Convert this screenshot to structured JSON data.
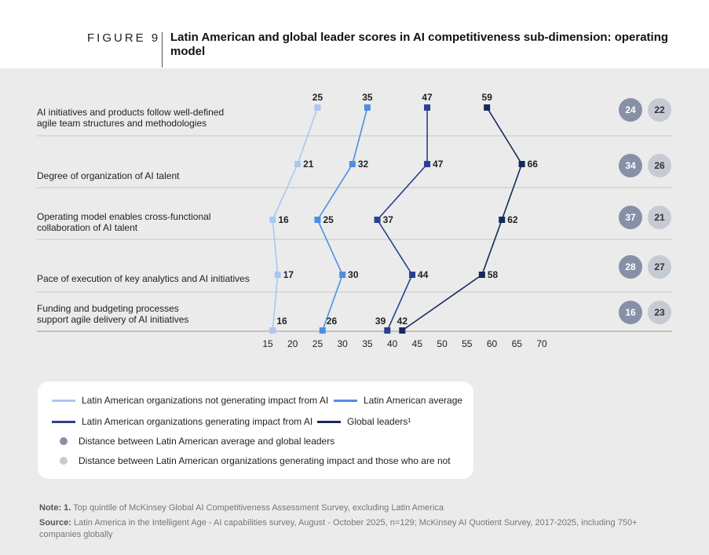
{
  "header": {
    "figure_label": "FIGURE 9",
    "title": "Latin American and global leader scores in AI competitiveness sub-dimension: operating model"
  },
  "chart_data": {
    "type": "line",
    "orientation": "horizontal-dumbbell",
    "x_ticks": [
      "15",
      "20",
      "25",
      "30",
      "35",
      "40",
      "45",
      "50",
      "55",
      "60",
      "65",
      "70"
    ],
    "xlim": [
      15,
      70
    ],
    "categories": [
      [
        "AI initiatives and products follow well-defined",
        "agile team structures and methodologies"
      ],
      [
        "Degree of organization of AI talent"
      ],
      [
        "Operating model enables cross-functional",
        "collaboration of AI talent"
      ],
      [
        "Pace of execution of key analytics and AI initiatives"
      ],
      [
        "Funding and budgeting processes",
        "support agile delivery of AI initiatives"
      ]
    ],
    "series": [
      {
        "name": "Latin American organizations not generating impact from AI",
        "color": "#a9c8f0",
        "values": [
          25,
          21,
          16,
          17,
          16
        ]
      },
      {
        "name": "Latin American average",
        "color": "#4d8fe3",
        "values": [
          35,
          32,
          25,
          30,
          26
        ]
      },
      {
        "name": "Latin American organizations generating impact from AI",
        "color": "#28418f",
        "values": [
          47,
          47,
          37,
          44,
          39
        ]
      },
      {
        "name": "Global leaders¹",
        "color": "#152a5c",
        "values": [
          59,
          66,
          62,
          58,
          42
        ]
      }
    ],
    "distances": [
      {
        "avg_vs_leaders": "24",
        "impact_vs_not": "22"
      },
      {
        "avg_vs_leaders": "34",
        "impact_vs_not": "26"
      },
      {
        "avg_vs_leaders": "37",
        "impact_vs_not": "21"
      },
      {
        "avg_vs_leaders": "28",
        "impact_vs_not": "27"
      },
      {
        "avg_vs_leaders": "16",
        "impact_vs_not": "23"
      }
    ],
    "colors": {
      "dark_circle": "#8790a6",
      "light_circle": "#c6cbd3"
    }
  },
  "legend": {
    "not_impact": "Latin American organizations not generating impact from AI",
    "average": "Latin American average",
    "impact": "Latin American organizations generating impact from AI",
    "leaders": "Global leaders¹",
    "dark_dot": "Distance between Latin American average and global leaders",
    "light_dot": "Distance between Latin American organizations generating impact and those who are not"
  },
  "notes": {
    "note_label": "Note: 1.",
    "note_text": "Top quintile of McKinsey Global AI Competitiveness Assessment Survey, excluding Latin America",
    "source_label": "Source:",
    "source_text": "Latin America in the Intelligent Age - AI capabilities survey, August - October 2025, n=129; McKinsey AI Quotient Survey, 2017-2025, including 750+ companies globally"
  }
}
